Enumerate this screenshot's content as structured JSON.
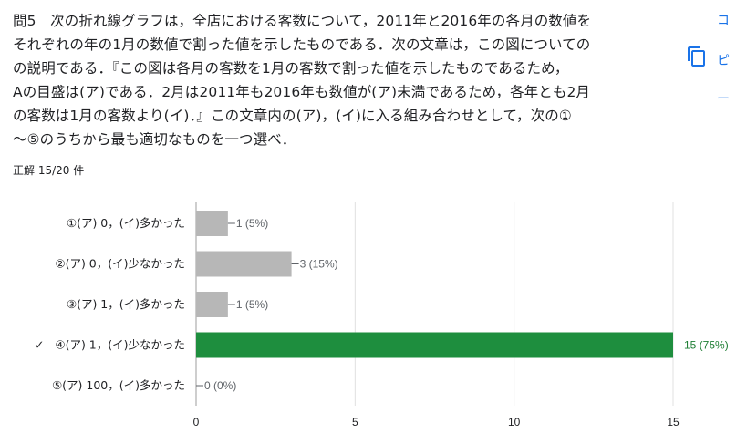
{
  "question": {
    "lines": [
      "問5　次の折れ線グラフは，全店における客数について，2011年と2016年の各月の数値を",
      "それぞれの年の1月の数値で割った値を示したものである．次の文章は，この図についての",
      "の説明である．『この図は各月の客数を1月の客数で割った値を示したものであるため，",
      "Aの目盛は(ア)である．2月は2011年も2016年も数値が(ア)未満であるため，各年とも2月",
      "の客数は1月の客数より(イ)．』この文章内の(ア)，(イ)に入る組み合わせとして，次の①",
      "〜⑤のうちから最も適切なものを一つ選べ．"
    ]
  },
  "score_text": "正解 15/20 件",
  "copy_widget": {
    "icon": "copy-icon",
    "chars": [
      "コ",
      "ピ",
      "ー"
    ]
  },
  "colors": {
    "bar_default": "#b7b7b7",
    "bar_correct": "#1e8e3e",
    "label_default": "#5f6368",
    "label_correct": "#1e7e34",
    "grid": "#e0e0e0",
    "axis": "#9e9e9e"
  },
  "chart_data": {
    "type": "bar",
    "orientation": "horizontal",
    "categories": [
      "①(ア) 0，(イ)多かった",
      "②(ア) 0，(イ)少なかった",
      "③(ア) 1，(イ)多かった",
      "④(ア) 1，(イ)少なかった",
      "⑤(ア) 100，(イ)多かった"
    ],
    "values": [
      1,
      3,
      1,
      15,
      0
    ],
    "value_labels": [
      "1 (5%)",
      "3 (15%)",
      "1 (5%)",
      "15 (75%)",
      "0 (0%)"
    ],
    "correct_index": 3,
    "correct_mark": "✓",
    "xlim": [
      0,
      15
    ],
    "xticks": [
      0,
      5,
      10,
      15
    ],
    "grid": true
  }
}
